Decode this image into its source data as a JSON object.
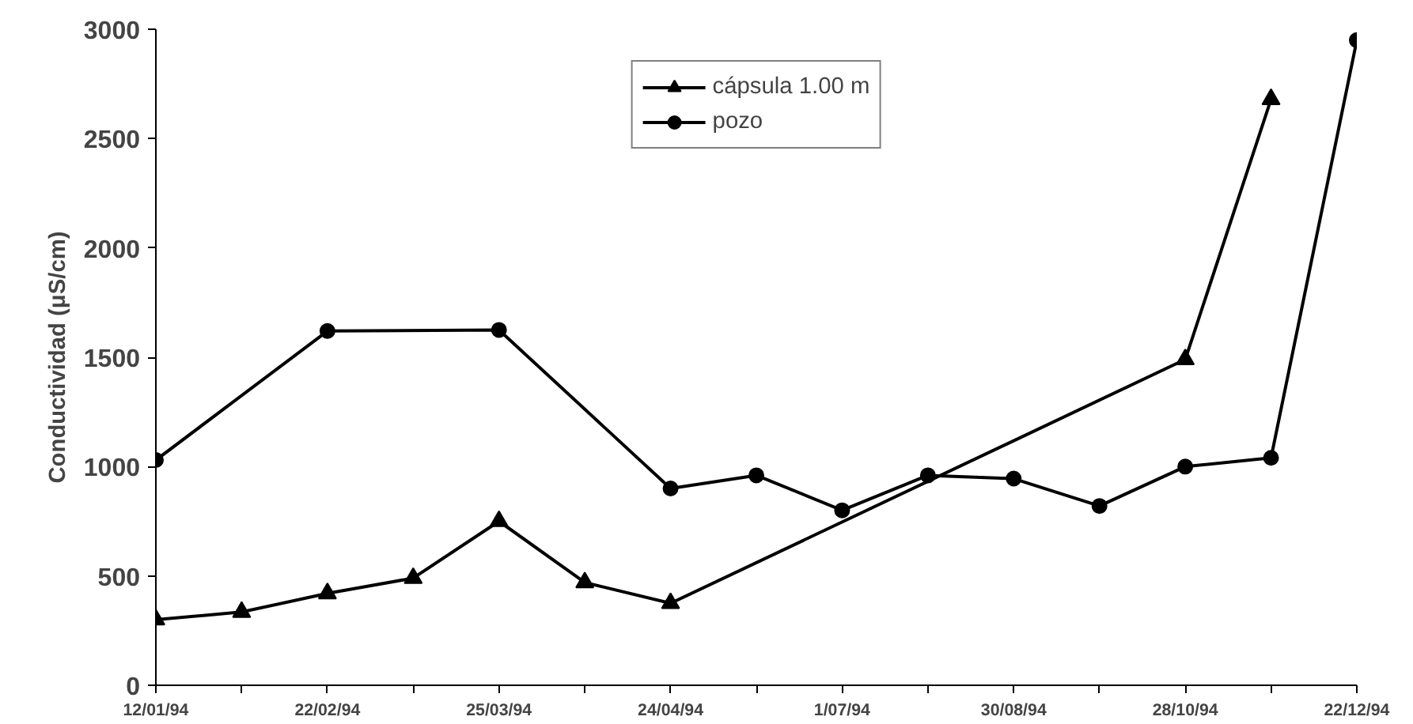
{
  "chart_data": {
    "type": "line",
    "ylabel": "Conductividad (μS/cm)",
    "categories": [
      "12/01/94",
      null,
      "22/02/94",
      null,
      "25/03/94",
      null,
      "24/04/94",
      null,
      "1/07/94",
      null,
      "30/08/94",
      null,
      "28/10/94",
      null,
      "22/12/94"
    ],
    "series": [
      {
        "name": "cápsula 1.00 m",
        "color": "#000000",
        "marker": "triangle",
        "values": [
          300,
          335,
          420,
          490,
          750,
          470,
          375,
          null,
          null,
          null,
          null,
          null,
          1490,
          2680,
          null
        ]
      },
      {
        "name": "pozo",
        "color": "#000000",
        "marker": "circle",
        "values": [
          1030,
          null,
          1620,
          null,
          1625,
          null,
          900,
          960,
          800,
          960,
          945,
          820,
          1000,
          1040,
          2950
        ]
      }
    ],
    "ylim": [
      0,
      3000
    ],
    "yticks": [
      0,
      500,
      1000,
      1500,
      2000,
      2500,
      3000
    ],
    "grid": false,
    "legend": "top",
    "line_style": "solid"
  }
}
